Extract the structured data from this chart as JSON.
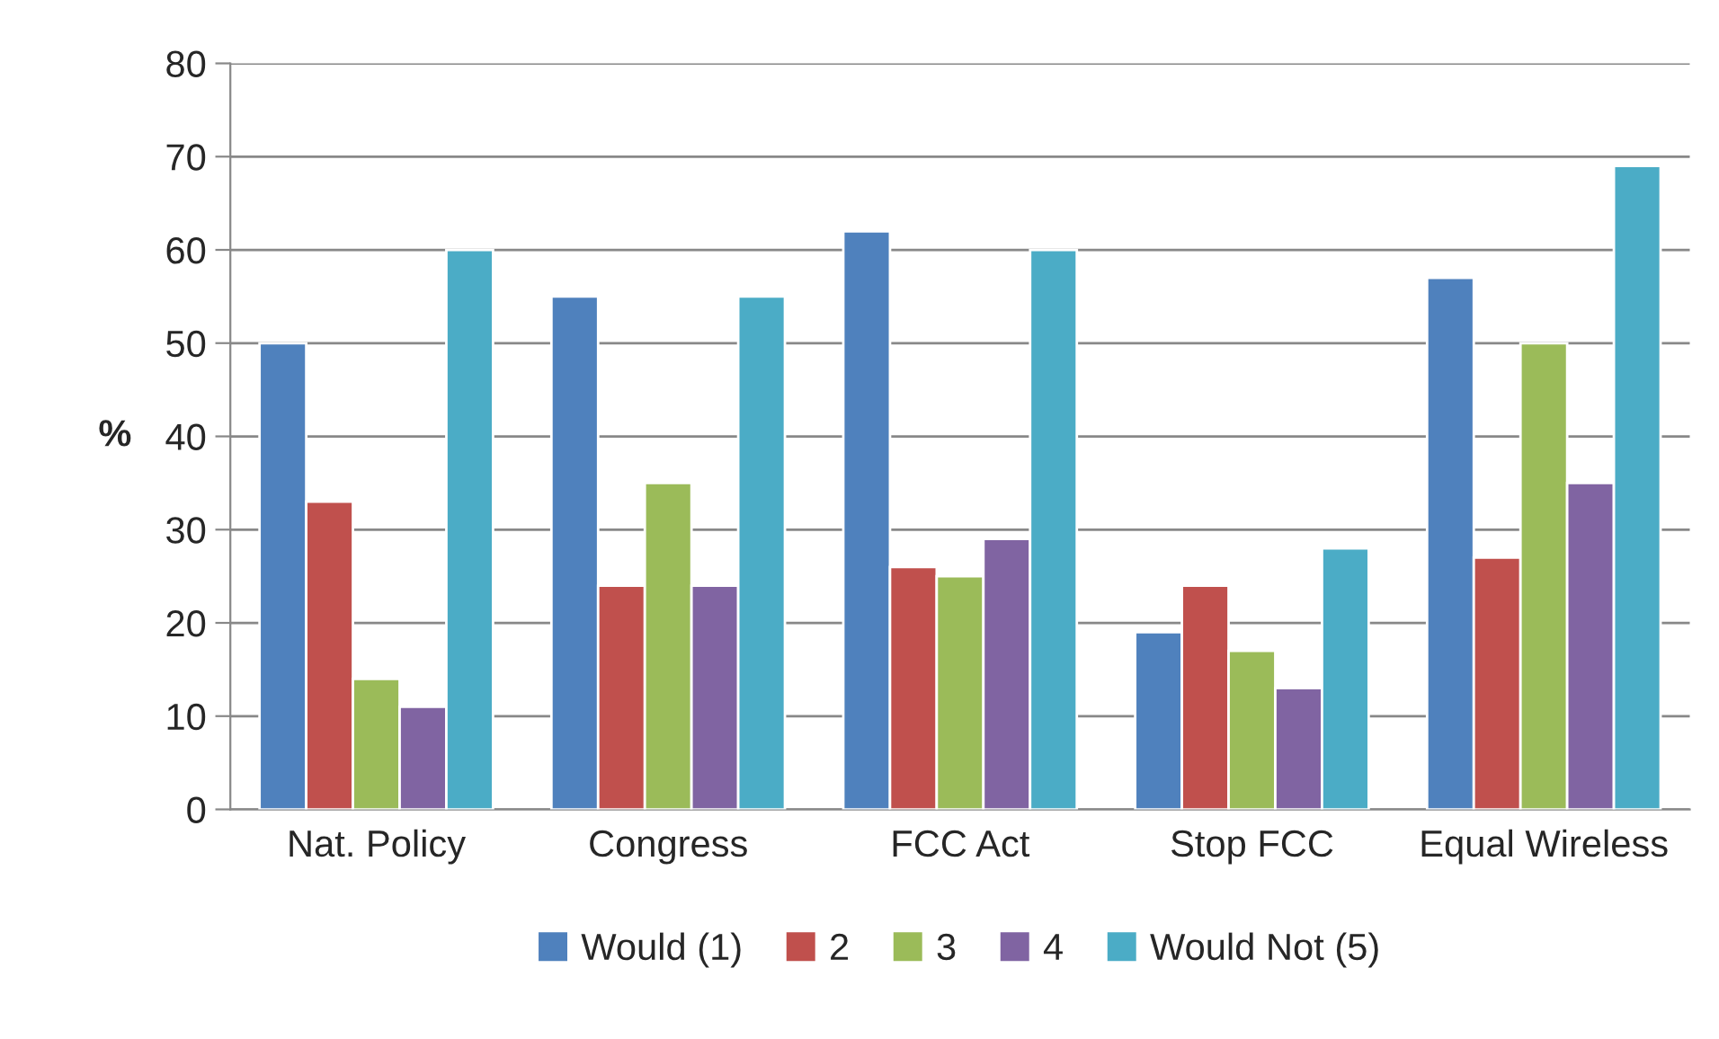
{
  "chart_data": {
    "type": "bar",
    "ylabel": "%",
    "categories": [
      "Nat. Policy",
      "Congress",
      "FCC Act",
      "Stop FCC",
      "Equal Wireless"
    ],
    "series": [
      {
        "name": "Would (1)",
        "color": "#4f81bd",
        "values": [
          50,
          55,
          62,
          19,
          57
        ]
      },
      {
        "name": "2",
        "color": "#c0504d",
        "values": [
          33,
          24,
          26,
          24,
          27
        ]
      },
      {
        "name": "3",
        "color": "#9bbb59",
        "values": [
          14,
          35,
          25,
          17,
          50
        ]
      },
      {
        "name": "4",
        "color": "#8064a2",
        "values": [
          11,
          24,
          29,
          13,
          35
        ]
      },
      {
        "name": "Would Not (5)",
        "color": "#4bacc6",
        "values": [
          60,
          55,
          60,
          28,
          69
        ]
      }
    ],
    "ylim": [
      0,
      80
    ],
    "yticks": [
      0,
      10,
      20,
      30,
      40,
      50,
      60,
      70,
      80
    ],
    "grid": "y",
    "legend": "bottom"
  }
}
